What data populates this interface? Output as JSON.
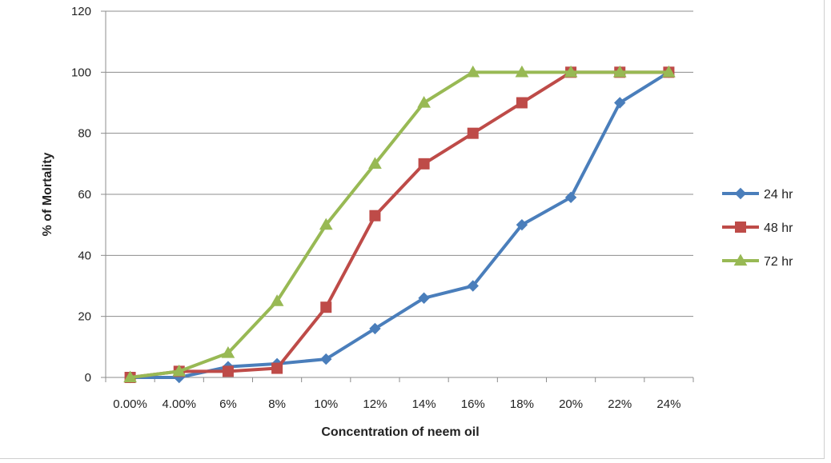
{
  "chart_data": {
    "type": "line",
    "title": "",
    "xlabel": "Concentration of neem oil",
    "ylabel": "% of Mortality",
    "categories": [
      "0.00%",
      "4.00%",
      "6%",
      "8%",
      "10%",
      "12%",
      "14%",
      "16%",
      "18%",
      "20%",
      "22%",
      "24%"
    ],
    "ylim": [
      0,
      120
    ],
    "yticks": [
      0,
      20,
      40,
      60,
      80,
      100,
      120
    ],
    "grid": true,
    "legend_position": "right",
    "series": [
      {
        "name": "24 hr",
        "color": "#4a7ebb",
        "marker": "diamond",
        "values": [
          0,
          0,
          3.5,
          4.5,
          6,
          16,
          26,
          30,
          50,
          59,
          90,
          100
        ]
      },
      {
        "name": "48 hr",
        "color": "#be4b48",
        "marker": "square",
        "values": [
          0,
          2,
          2,
          3,
          23,
          53,
          70,
          80,
          90,
          100,
          100,
          100
        ]
      },
      {
        "name": "72 hr",
        "color": "#98b954",
        "marker": "triangle",
        "values": [
          0,
          2,
          8,
          25,
          50,
          70,
          90,
          100,
          100,
          100,
          100,
          100
        ]
      }
    ]
  }
}
